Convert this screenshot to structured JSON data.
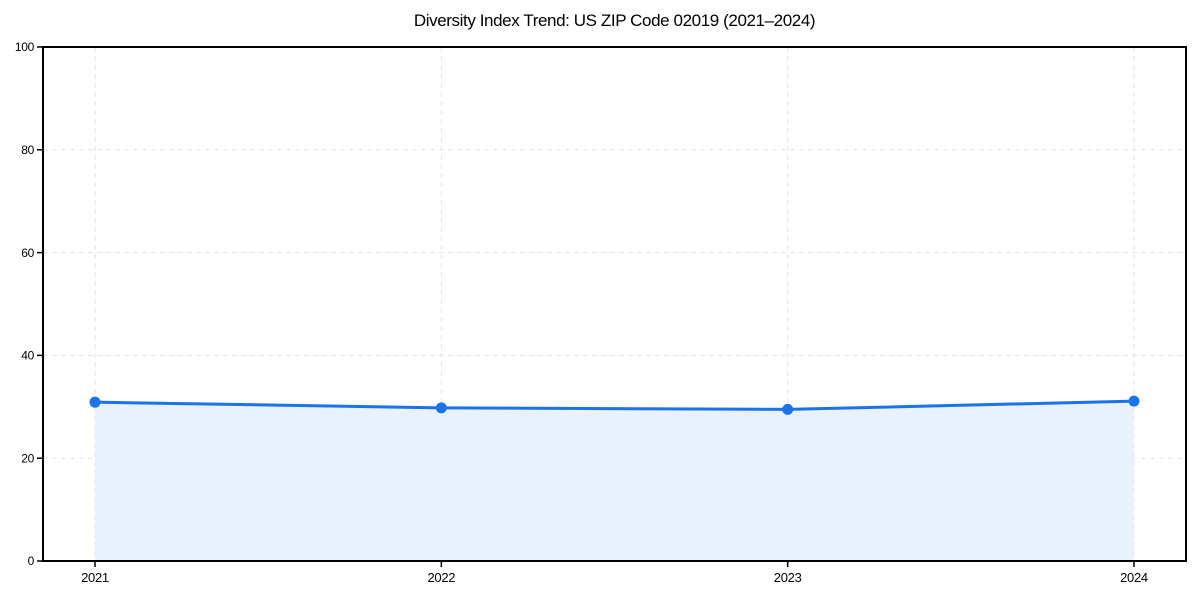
{
  "title": "Diversity Index Trend: US ZIP Code 02019 (2021–2024)",
  "chart_data": {
    "type": "area",
    "title": "Diversity Index Trend: US ZIP Code 02019 (2021–2024)",
    "categories": [
      "2021",
      "2022",
      "2023",
      "2024"
    ],
    "series": [
      {
        "name": "Diversity Index",
        "values": [
          30.9,
          29.8,
          29.5,
          31.1
        ]
      }
    ],
    "xlabel": "",
    "ylabel": "",
    "ylim": [
      0,
      100
    ],
    "yticks": [
      0,
      20,
      40,
      60,
      80,
      100
    ],
    "grid": "dashed-both",
    "legend": "none",
    "colors": {
      "line": "#1a73e8",
      "marker": "#1a73e8",
      "fill": "#e8f1fc",
      "grid": "#e2e2e2",
      "spine": "#000000",
      "tick_text": "#000000",
      "background": "#ffffff"
    }
  }
}
